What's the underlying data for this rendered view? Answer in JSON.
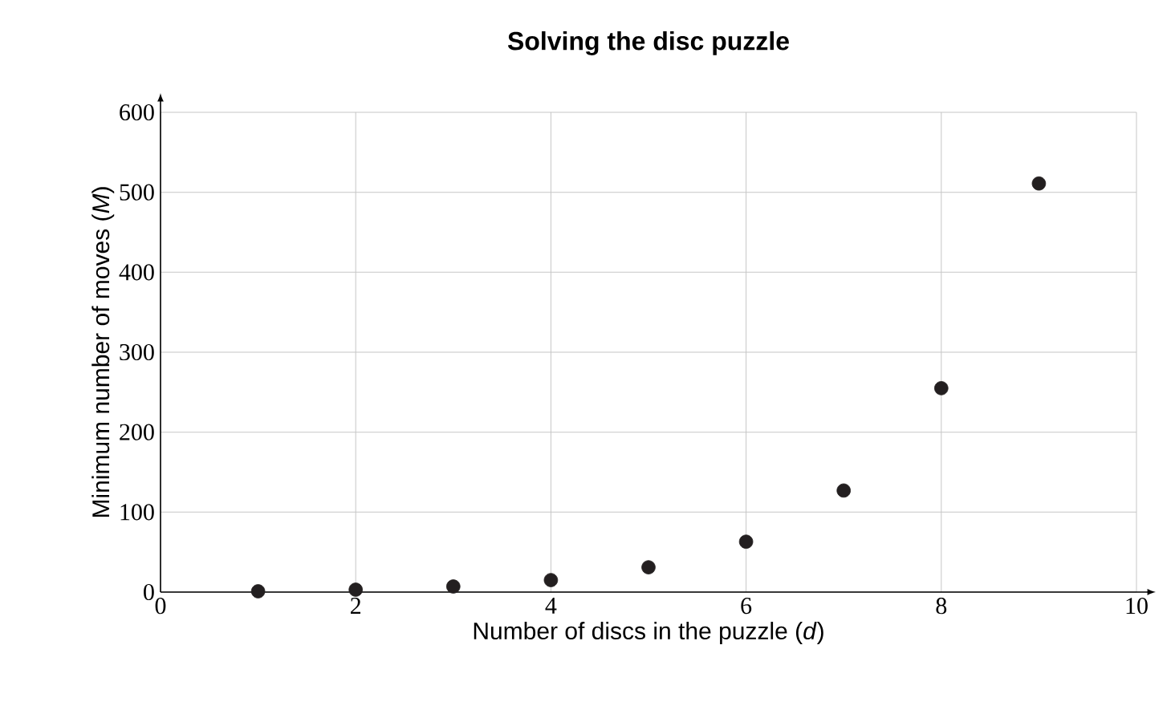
{
  "chart_data": {
    "type": "scatter",
    "title": "Solving the disc puzzle",
    "xlabel": "Number of discs in the puzzle (*d*)",
    "ylabel": "Minimum number of moves (*M*)",
    "series": [
      {
        "color": "#231f20",
        "x": [
          1,
          2,
          3,
          4,
          5,
          6,
          7,
          8,
          9
        ],
        "values": [
          1,
          3,
          7,
          15,
          31,
          63,
          127,
          255,
          511
        ]
      }
    ],
    "xlim": [
      0,
      10
    ],
    "ylim": [
      0,
      600
    ],
    "xticks": [
      0,
      2,
      4,
      6,
      8,
      10
    ],
    "yticks": [
      0,
      100,
      200,
      300,
      400,
      500,
      600
    ],
    "grid": true,
    "marker": "circle"
  }
}
